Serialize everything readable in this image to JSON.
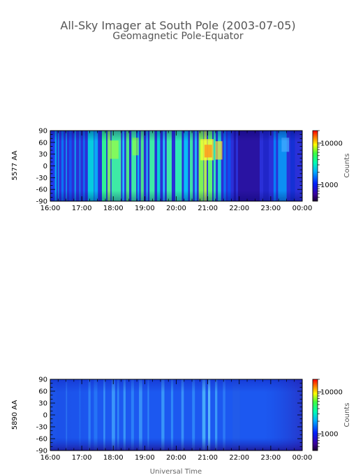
{
  "title": "All-Sky Imager at South Pole (2003-07-05)",
  "subtitle": "Geomagnetic Pole-Equator",
  "xlabel": "Universal Time",
  "chart_data": [
    {
      "type": "heatmap",
      "ylabel": "5577 AA",
      "x_range": [
        "16:00",
        "00:00"
      ],
      "x_ticks": [
        "16:00",
        "17:00",
        "18:00",
        "19:00",
        "20:00",
        "21:00",
        "22:00",
        "23:00",
        "00:00"
      ],
      "ylim": [
        -90,
        90
      ],
      "y_ticks": [
        90,
        60,
        30,
        0,
        -30,
        -60,
        -90
      ],
      "colorbar": {
        "label": "Counts",
        "ticks": [
          "10000",
          "1000"
        ],
        "scale": "log"
      }
    },
    {
      "type": "heatmap",
      "ylabel": "5890 AA",
      "x_range": [
        "16:00",
        "00:00"
      ],
      "x_ticks": [
        "16:00",
        "17:00",
        "18:00",
        "19:00",
        "20:00",
        "21:00",
        "22:00",
        "23:00",
        "00:00"
      ],
      "ylim": [
        -90,
        90
      ],
      "y_ticks": [
        90,
        60,
        30,
        0,
        -30,
        -60,
        -90
      ],
      "colorbar": {
        "label": "Counts",
        "ticks": [
          "10000",
          "1000"
        ],
        "scale": "log"
      }
    }
  ]
}
